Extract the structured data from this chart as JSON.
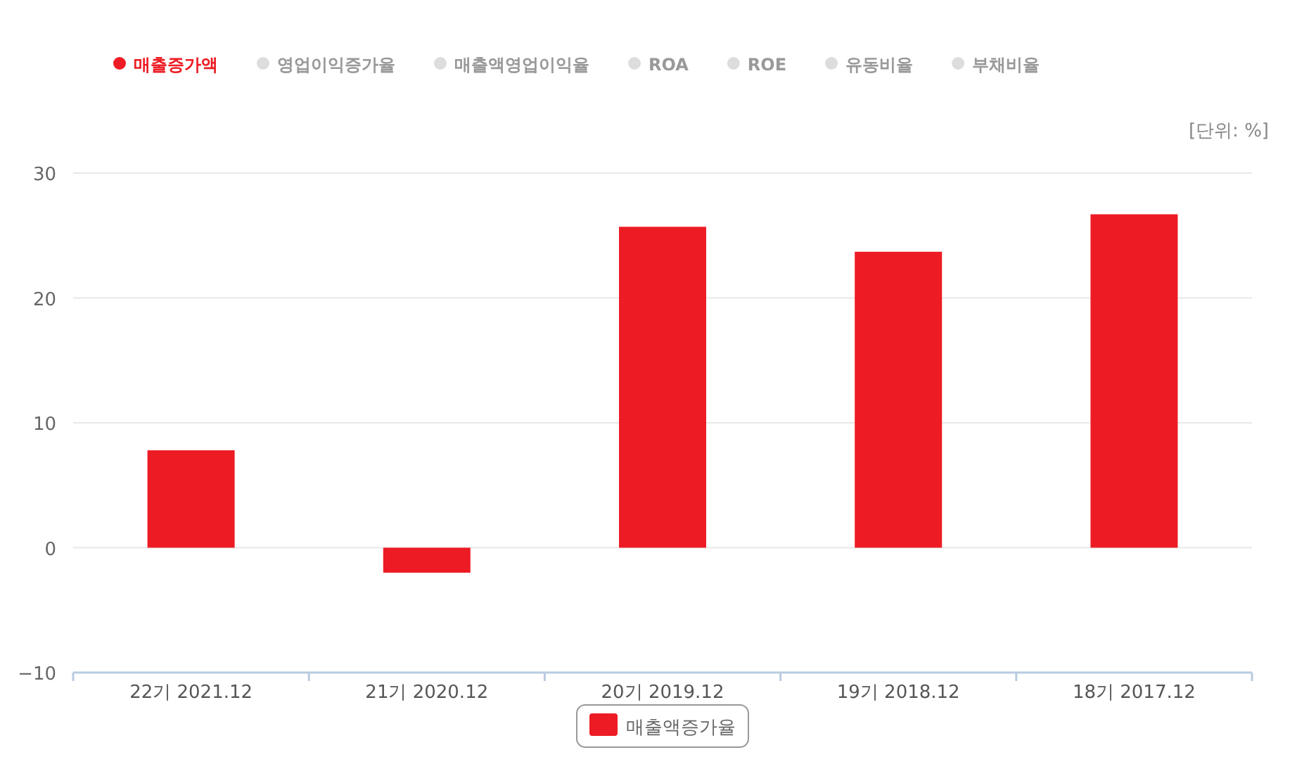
{
  "chart_data": {
    "type": "bar",
    "annotations": [
      "매출증가액",
      "영업이익증가율",
      "매출액영업이익율",
      "ROA",
      "ROE",
      "유동비율",
      "부채비율"
    ],
    "ylabel": "[단위: %]",
    "categories": [
      "22기 2021.12",
      "21기 2020.12",
      "20기 2019.12",
      "19기 2018.12",
      "18기 2017.12"
    ],
    "series": [
      {
        "name": "매출액증가율",
        "color": "#ed1c24",
        "values": [
          7.8,
          -2.0,
          25.7,
          23.7,
          26.7
        ]
      }
    ],
    "ylim": [
      -10,
      30
    ],
    "yticks": [
      -10,
      0,
      10,
      20,
      30
    ],
    "grid": "y",
    "legend": "bottom"
  }
}
